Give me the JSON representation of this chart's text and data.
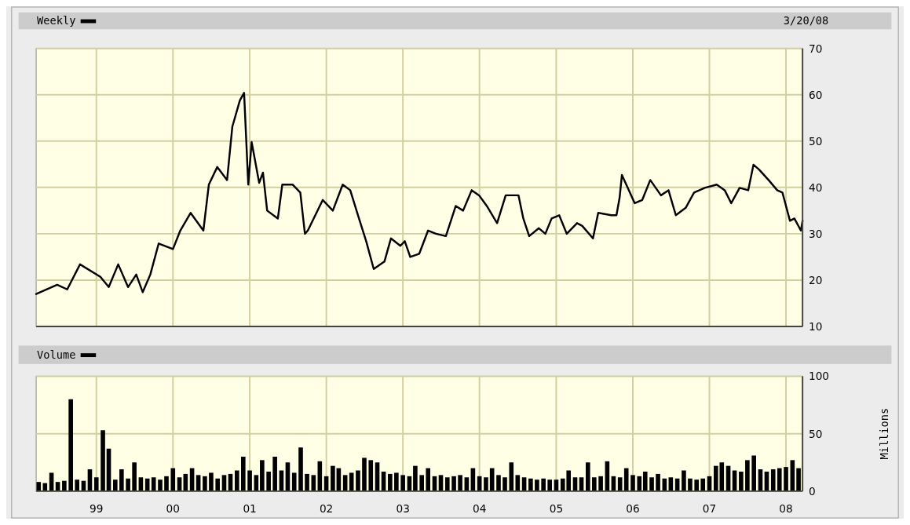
{
  "chart_data": [
    {
      "type": "line",
      "subtitle": "3/20/08",
      "legend": "top left",
      "grid": true,
      "tick_labels": "y",
      "xlim": [
        "1998-03-20",
        "2008-03-20"
      ],
      "xticks": [
        {
          "value": "1999-01-01",
          "label": null
        },
        {
          "value": "2000-01-01",
          "label": null
        },
        {
          "value": "2001-01-01",
          "label": null
        },
        {
          "value": "2002-01-01",
          "label": null
        },
        {
          "value": "2003-01-01",
          "label": null
        },
        {
          "value": "2004-01-01",
          "label": null
        },
        {
          "value": "2005-01-01",
          "label": null
        },
        {
          "value": "2006-01-01",
          "label": null
        },
        {
          "value": "2007-01-01",
          "label": null
        },
        {
          "value": "2008-01-01",
          "label": null
        }
      ],
      "ylim": [
        10,
        70
      ],
      "yticks": [
        10,
        20,
        30,
        40,
        50,
        60,
        70
      ],
      "series": [
        {
          "name": "Weekly",
          "color": "#000000",
          "x": [
            "1998-03-20",
            "1998-06-28",
            "1998-08-15",
            "1998-10-15",
            "1999-01-20",
            "1999-03-01",
            "1999-04-15",
            "1999-06-01",
            "1999-07-10",
            "1999-08-10",
            "1999-09-15",
            "1999-10-25",
            "2000-01-01",
            "2000-02-05",
            "2000-03-25",
            "2000-05-25",
            "2000-06-20",
            "2000-07-30",
            "2000-09-15",
            "2000-10-10",
            "2000-11-15",
            "2000-12-05",
            "2000-12-25",
            "2001-01-10",
            "2001-02-15",
            "2001-03-05",
            "2001-03-25",
            "2001-05-15",
            "2001-06-05",
            "2001-07-25",
            "2001-08-30",
            "2001-09-21",
            "2001-10-05",
            "2001-12-15",
            "2002-02-01",
            "2002-03-20",
            "2002-04-25",
            "2002-06-01",
            "2002-07-10",
            "2002-08-15",
            "2002-10-05",
            "2002-11-05",
            "2002-12-20",
            "2003-01-10",
            "2003-02-05",
            "2003-03-20",
            "2003-05-01",
            "2003-06-08",
            "2003-07-25",
            "2003-09-10",
            "2003-10-15",
            "2003-11-25",
            "2003-12-30",
            "2004-02-05",
            "2004-03-25",
            "2004-05-05",
            "2004-07-05",
            "2004-07-28",
            "2004-08-25",
            "2004-10-10",
            "2004-11-10",
            "2004-12-10",
            "2005-01-15",
            "2005-02-20",
            "2005-04-10",
            "2005-05-05",
            "2005-06-25",
            "2005-07-20",
            "2005-09-20",
            "2005-10-15",
            "2005-10-30",
            "2005-11-10",
            "2006-01-10",
            "2006-02-15",
            "2006-03-25",
            "2006-05-15",
            "2006-06-20",
            "2006-07-25",
            "2006-09-10",
            "2006-10-20",
            "2006-12-10",
            "2007-02-05",
            "2007-03-15",
            "2007-04-15",
            "2007-05-25",
            "2007-07-05",
            "2007-07-30",
            "2007-08-25",
            "2007-10-10",
            "2007-11-20",
            "2007-12-15",
            "2008-01-20",
            "2008-02-10",
            "2008-03-12",
            "2008-03-20"
          ],
          "values": [
            17,
            19,
            18,
            23.4,
            20.7,
            18.5,
            23.4,
            18.5,
            21.2,
            17.4,
            21.2,
            27.9,
            26.7,
            30.7,
            34.5,
            30.7,
            40.6,
            44.4,
            41.6,
            53.1,
            58.8,
            60.4,
            40.6,
            49.8,
            41,
            43.2,
            35,
            33.3,
            40.6,
            40.6,
            38.9,
            30,
            30.7,
            37.3,
            35,
            40.6,
            39.4,
            34,
            28.4,
            22.4,
            24,
            29,
            27.4,
            28.4,
            25,
            25.7,
            30.7,
            30,
            29.5,
            36,
            35,
            39.4,
            38.3,
            36,
            32.3,
            38.3,
            38.3,
            33.3,
            29.5,
            31.2,
            30,
            33.3,
            34,
            30,
            32.3,
            31.7,
            29,
            34.5,
            34,
            34,
            37.8,
            42.7,
            36.6,
            37.3,
            41.6,
            38.3,
            39.4,
            34,
            35.6,
            38.9,
            39.9,
            40.6,
            39.4,
            36.6,
            39.9,
            39.4,
            44.9,
            43.9,
            41.6,
            39.4,
            38.9,
            32.8,
            33.3,
            30.7,
            32.8
          ]
        }
      ]
    },
    {
      "type": "bar",
      "ylabel": "Millions",
      "legend": "top left",
      "grid": true,
      "xlim": [
        "1998-03-20",
        "2008-03-20"
      ],
      "xticks": [
        {
          "value": "1999-01-01",
          "label": "99"
        },
        {
          "value": "2000-01-01",
          "label": "00"
        },
        {
          "value": "2001-01-01",
          "label": "01"
        },
        {
          "value": "2002-01-01",
          "label": "02"
        },
        {
          "value": "2003-01-01",
          "label": "03"
        },
        {
          "value": "2004-01-01",
          "label": "04"
        },
        {
          "value": "2005-01-01",
          "label": "05"
        },
        {
          "value": "2006-01-01",
          "label": "06"
        },
        {
          "value": "2007-01-01",
          "label": "07"
        },
        {
          "value": "2008-01-01",
          "label": "08"
        }
      ],
      "ylim": [
        0,
        100
      ],
      "yticks": [
        0,
        50,
        100
      ],
      "series": [
        {
          "name": "Volume",
          "color": "#000000",
          "x": [
            "1998-04",
            "1998-05",
            "1998-06",
            "1998-07",
            "1998-08",
            "1998-09",
            "1998-10",
            "1998-11",
            "1998-12",
            "1999-01",
            "1999-02",
            "1999-03",
            "1999-04",
            "1999-05",
            "1999-06",
            "1999-07",
            "1999-08",
            "1999-09",
            "1999-10",
            "1999-11",
            "1999-12",
            "2000-01",
            "2000-02",
            "2000-03",
            "2000-04",
            "2000-05",
            "2000-06",
            "2000-07",
            "2000-08",
            "2000-09",
            "2000-10",
            "2000-11",
            "2000-12",
            "2001-01",
            "2001-02",
            "2001-03",
            "2001-04",
            "2001-05",
            "2001-06",
            "2001-07",
            "2001-08",
            "2001-09",
            "2001-10",
            "2001-11",
            "2001-12",
            "2002-01",
            "2002-02",
            "2002-03",
            "2002-04",
            "2002-05",
            "2002-06",
            "2002-07",
            "2002-08",
            "2002-09",
            "2002-10",
            "2002-11",
            "2002-12",
            "2003-01",
            "2003-02",
            "2003-03",
            "2003-04",
            "2003-05",
            "2003-06",
            "2003-07",
            "2003-08",
            "2003-09",
            "2003-10",
            "2003-11",
            "2003-12",
            "2004-01",
            "2004-02",
            "2004-03",
            "2004-04",
            "2004-05",
            "2004-06",
            "2004-07",
            "2004-08",
            "2004-09",
            "2004-10",
            "2004-11",
            "2004-12",
            "2005-01",
            "2005-02",
            "2005-03",
            "2005-04",
            "2005-05",
            "2005-06",
            "2005-07",
            "2005-08",
            "2005-09",
            "2005-10",
            "2005-11",
            "2005-12",
            "2006-01",
            "2006-02",
            "2006-03",
            "2006-04",
            "2006-05",
            "2006-06",
            "2006-07",
            "2006-08",
            "2006-09",
            "2006-10",
            "2006-11",
            "2006-12",
            "2007-01",
            "2007-02",
            "2007-03",
            "2007-04",
            "2007-05",
            "2007-06",
            "2007-07",
            "2007-08",
            "2007-09",
            "2007-10",
            "2007-11",
            "2007-12",
            "2008-01",
            "2008-02",
            "2008-03"
          ],
          "values": [
            8,
            7,
            16,
            8,
            9,
            80,
            10,
            9,
            19,
            12,
            53,
            37,
            10,
            19,
            11,
            25,
            12,
            11,
            12,
            10,
            13,
            20,
            12,
            15,
            20,
            14,
            13,
            16,
            11,
            14,
            15,
            18,
            30,
            18,
            14,
            27,
            17,
            30,
            18,
            25,
            16,
            38,
            15,
            14,
            26,
            13,
            22,
            20,
            14,
            16,
            18,
            29,
            27,
            25,
            17,
            15,
            16,
            14,
            13,
            22,
            14,
            20,
            13,
            14,
            12,
            13,
            14,
            12,
            20,
            13,
            12,
            20,
            14,
            12,
            25,
            14,
            12,
            11,
            10,
            11,
            10,
            10,
            11,
            18,
            12,
            12,
            25,
            12,
            13,
            26,
            13,
            12,
            20,
            14,
            13,
            17,
            12,
            15,
            11,
            12,
            11,
            18,
            11,
            10,
            11,
            13,
            22,
            25,
            22,
            18,
            17,
            27,
            31,
            19,
            17,
            19,
            20,
            21,
            27,
            20
          ]
        }
      ]
    }
  ]
}
